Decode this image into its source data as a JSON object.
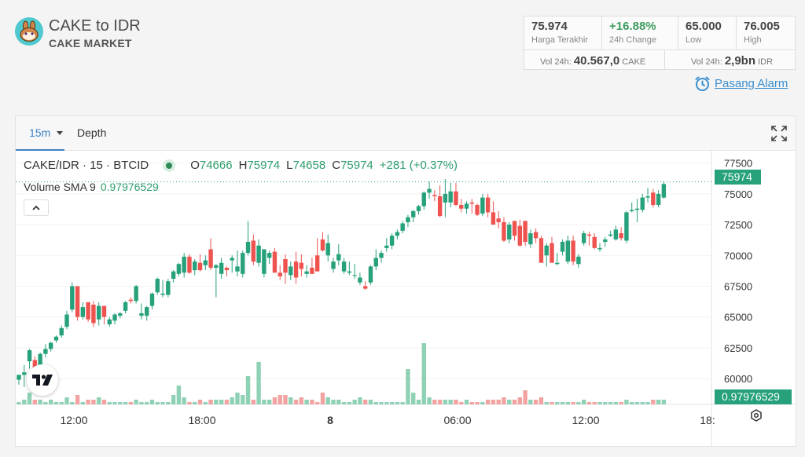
{
  "header": {
    "title": "CAKE to IDR",
    "subtitle": "CAKE MARKET",
    "logo_icon": "pancake-bunny-icon"
  },
  "stats": {
    "last_price": {
      "value": "75.974",
      "label": "Harga Terakhir"
    },
    "change_24h": {
      "value": "+16.88%",
      "label": "24h Change"
    },
    "low": {
      "value": "65.000",
      "label": "Low"
    },
    "high": {
      "value": "76.005",
      "label": "High"
    },
    "vol_base": {
      "label": "Vol 24h:",
      "value": "40.567,0",
      "unit": "CAKE"
    },
    "vol_quote": {
      "label": "Vol 24h:",
      "value": "2,9bn",
      "unit": "IDR"
    }
  },
  "alarm": {
    "label": "Pasang Alarm",
    "icon": "alarm-clock-icon"
  },
  "toolbar": {
    "interval": "15m",
    "depth": "Depth",
    "expand_icon": "fullscreen-icon"
  },
  "legend": {
    "symbol": "CAKE/IDR · 15 · BTCID",
    "o_label": "O",
    "o": "74666",
    "h_label": "H",
    "h": "75974",
    "l_label": "L",
    "l": "74658",
    "c_label": "C",
    "c": "75974",
    "change": "+281 (+0.37%)",
    "volume_label": "Volume SMA 9",
    "volume_value": "0.97976529"
  },
  "chart_data": {
    "type": "candlestick",
    "y_axis_ticks": [
      "77500",
      "75000",
      "72500",
      "70000",
      "67500",
      "65000",
      "62500",
      "60000"
    ],
    "x_axis_ticks": [
      "12:00",
      "18:00",
      "8",
      "06:00",
      "12:00",
      "18:"
    ],
    "ylim": [
      57900,
      78500
    ],
    "last_price_tag": "75974",
    "volume_tag": "0.97976529",
    "colors": {
      "up": "#26a17b",
      "down": "#ef5350",
      "up_vol": "#8ed1b5",
      "down_vol": "#f2a3a1"
    },
    "candles": [
      [
        59900,
        60300,
        59500,
        60300,
        1
      ],
      [
        60300,
        61100,
        59300,
        60500,
        2
      ],
      [
        61400,
        62400,
        60800,
        62300,
        5
      ],
      [
        61500,
        61800,
        60500,
        60700,
        2
      ],
      [
        61000,
        62100,
        60200,
        62000,
        2
      ],
      [
        62000,
        62800,
        61700,
        62400,
        1
      ],
      [
        62400,
        63000,
        62200,
        62900,
        2
      ],
      [
        63100,
        63500,
        62900,
        63400,
        1
      ],
      [
        63500,
        64300,
        63300,
        64100,
        1
      ],
      [
        64200,
        65500,
        64000,
        65200,
        3
      ],
      [
        65600,
        67800,
        65400,
        67500,
        1
      ],
      [
        67500,
        67500,
        64700,
        65000,
        4
      ],
      [
        65000,
        66200,
        64800,
        65800,
        1
      ],
      [
        66200,
        66200,
        64600,
        64800,
        2
      ],
      [
        66000,
        66300,
        64200,
        64500,
        2
      ],
      [
        64800,
        66200,
        64300,
        65900,
        3
      ],
      [
        65900,
        65900,
        64400,
        65000,
        2
      ],
      [
        64400,
        65000,
        64200,
        64800,
        1
      ],
      [
        64700,
        65300,
        64400,
        65200,
        1
      ],
      [
        65100,
        65400,
        64900,
        65300,
        1
      ],
      [
        65500,
        66300,
        65300,
        66200,
        1
      ],
      [
        66400,
        66600,
        66100,
        66300,
        1
      ],
      [
        66300,
        67600,
        66100,
        67500,
        2
      ],
      [
        65100,
        66100,
        64800,
        65300,
        1
      ],
      [
        65100,
        65900,
        64700,
        65800,
        1
      ],
      [
        65900,
        67000,
        65600,
        66900,
        2
      ],
      [
        67000,
        68200,
        66800,
        68100,
        1
      ],
      [
        66800,
        68000,
        66600,
        66900,
        1
      ],
      [
        66800,
        68100,
        66600,
        67900,
        1
      ],
      [
        68100,
        68800,
        67800,
        68700,
        4
      ],
      [
        68500,
        69400,
        68300,
        69300,
        8
      ],
      [
        68600,
        70200,
        68200,
        69900,
        3
      ],
      [
        69900,
        70100,
        68500,
        68600,
        1
      ],
      [
        68800,
        69700,
        68400,
        69500,
        1
      ],
      [
        69400,
        70100,
        68700,
        68800,
        2
      ],
      [
        69200,
        70000,
        68800,
        69600,
        1
      ],
      [
        70500,
        71400,
        68800,
        69000,
        2
      ],
      [
        69000,
        69300,
        66600,
        69200,
        2
      ],
      [
        68500,
        69800,
        68100,
        69400,
        2
      ],
      [
        69000,
        69100,
        68300,
        68800,
        2
      ],
      [
        69600,
        70000,
        68600,
        69800,
        3
      ],
      [
        68700,
        70400,
        68300,
        69100,
        5
      ],
      [
        68500,
        70400,
        68200,
        70200,
        4
      ],
      [
        70200,
        72800,
        70000,
        71100,
        12
      ],
      [
        71200,
        71700,
        69200,
        69500,
        2
      ],
      [
        69400,
        71300,
        69100,
        70800,
        18
      ],
      [
        68500,
        70500,
        68200,
        70500,
        2
      ],
      [
        69800,
        70400,
        69300,
        70200,
        2
      ],
      [
        70300,
        70600,
        68600,
        68600,
        3
      ],
      [
        68600,
        69200,
        68000,
        68300,
        4
      ],
      [
        69700,
        70100,
        67700,
        68600,
        4
      ],
      [
        68400,
        69500,
        68000,
        69100,
        3
      ],
      [
        69500,
        70300,
        67700,
        68200,
        2
      ],
      [
        69400,
        70100,
        68300,
        68900,
        3
      ],
      [
        68500,
        69200,
        68200,
        68700,
        2
      ],
      [
        69000,
        69800,
        68500,
        68500,
        2
      ],
      [
        70000,
        71400,
        68700,
        68700,
        1
      ],
      [
        71300,
        71900,
        70300,
        70400,
        5
      ],
      [
        70000,
        71700,
        69500,
        71000,
        3
      ],
      [
        68900,
        69800,
        68600,
        69500,
        2
      ],
      [
        69600,
        70900,
        69200,
        70100,
        2
      ],
      [
        68700,
        69800,
        68500,
        69500,
        1
      ],
      [
        68600,
        69500,
        68400,
        68700,
        1
      ],
      [
        68400,
        69300,
        68100,
        68400,
        2
      ],
      [
        67800,
        68600,
        67600,
        68200,
        3
      ],
      [
        67500,
        67900,
        67200,
        67300,
        2
      ],
      [
        67800,
        69200,
        67600,
        69100,
        2
      ],
      [
        69100,
        70500,
        68800,
        69800,
        1
      ],
      [
        69800,
        70400,
        69400,
        70200,
        1
      ],
      [
        70600,
        71400,
        70300,
        70800,
        1
      ],
      [
        70800,
        71800,
        70500,
        71600,
        1
      ],
      [
        71600,
        72100,
        71300,
        71900,
        1
      ],
      [
        72000,
        72800,
        71800,
        72600,
        1
      ],
      [
        72700,
        73300,
        72300,
        73100,
        15
      ],
      [
        73100,
        73700,
        72700,
        73600,
        5
      ],
      [
        73600,
        74100,
        73300,
        74000,
        2
      ],
      [
        74000,
        75200,
        73700,
        75100,
        26
      ],
      [
        75100,
        76000,
        74600,
        75400,
        3
      ],
      [
        74900,
        75300,
        74400,
        74800,
        2
      ],
      [
        74800,
        75700,
        73100,
        73200,
        2
      ],
      [
        74300,
        76200,
        73100,
        75000,
        2
      ],
      [
        74300,
        75900,
        73900,
        75200,
        2
      ],
      [
        75200,
        75900,
        74000,
        74100,
        2
      ],
      [
        74100,
        74600,
        73500,
        73800,
        1
      ],
      [
        73800,
        74400,
        73400,
        74200,
        2
      ],
      [
        74300,
        74600,
        73400,
        74200,
        1
      ],
      [
        74100,
        74200,
        73200,
        73300,
        1
      ],
      [
        73400,
        75000,
        73200,
        74700,
        1
      ],
      [
        74700,
        75000,
        73100,
        73500,
        2
      ],
      [
        73500,
        74400,
        72500,
        72500,
        2
      ],
      [
        73000,
        73600,
        72200,
        72700,
        2
      ],
      [
        72700,
        73100,
        71100,
        71200,
        3
      ],
      [
        71300,
        72700,
        71000,
        72500,
        2
      ],
      [
        72800,
        72800,
        71200,
        71600,
        2
      ],
      [
        72400,
        72900,
        70700,
        70800,
        3
      ],
      [
        72800,
        72800,
        70800,
        71100,
        6
      ],
      [
        70900,
        72100,
        70600,
        71800,
        2
      ],
      [
        71900,
        72200,
        71000,
        71400,
        2
      ],
      [
        71400,
        71600,
        69400,
        69400,
        3
      ],
      [
        70000,
        71000,
        69100,
        70800,
        1
      ],
      [
        71000,
        71500,
        69400,
        69400,
        1
      ],
      [
        69300,
        70200,
        69200,
        69400,
        1
      ],
      [
        70300,
        71300,
        70000,
        71100,
        1
      ],
      [
        69500,
        71600,
        69300,
        71200,
        1
      ],
      [
        71200,
        71600,
        69200,
        69500,
        1
      ],
      [
        69300,
        70100,
        69000,
        69900,
        1
      ],
      [
        71000,
        72000,
        70800,
        71800,
        2
      ],
      [
        71700,
        71900,
        70800,
        71600,
        1
      ],
      [
        71500,
        71800,
        70500,
        70600,
        1
      ],
      [
        70500,
        71000,
        70300,
        70600,
        1
      ],
      [
        71100,
        71500,
        70700,
        71300,
        1
      ],
      [
        71600,
        72000,
        71500,
        71700,
        1
      ],
      [
        71300,
        72400,
        71200,
        72100,
        1
      ],
      [
        71800,
        72300,
        71200,
        71400,
        1
      ],
      [
        71200,
        73600,
        71000,
        73500,
        2
      ],
      [
        73600,
        74300,
        73500,
        73700,
        1
      ],
      [
        73700,
        74600,
        72700,
        73800,
        1
      ],
      [
        73700,
        75000,
        73500,
        74700,
        1
      ],
      [
        74700,
        75500,
        74300,
        74800,
        1
      ],
      [
        75100,
        75400,
        73900,
        74100,
        2
      ],
      [
        74100,
        75300,
        73900,
        75000,
        2
      ],
      [
        74700,
        76000,
        74600,
        75800,
        2
      ]
    ]
  }
}
